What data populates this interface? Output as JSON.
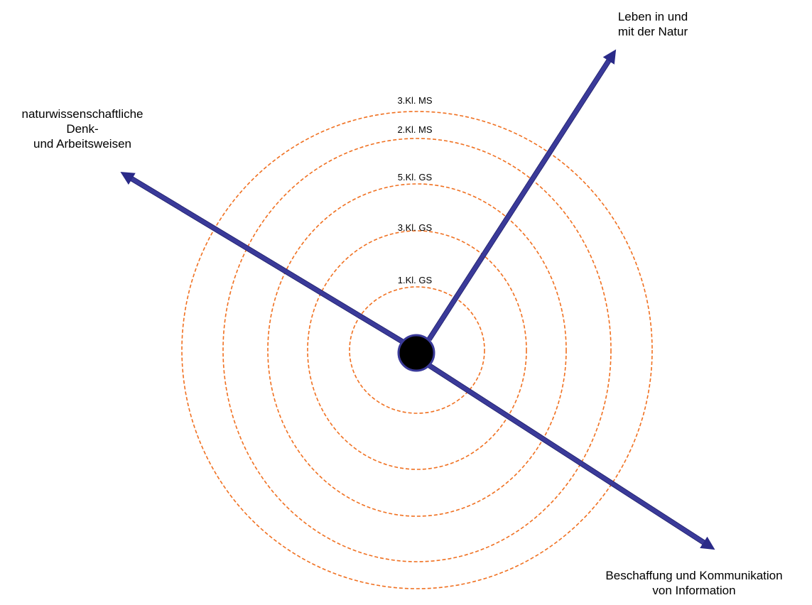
{
  "axes": {
    "nature": {
      "line1": "Leben in und",
      "line2": "mit der Natur"
    },
    "science": {
      "line1": "naturwissenschaftliche",
      "line2": "Denk-",
      "line3": "und Arbeitsweisen"
    },
    "info": {
      "line1": "Beschaffung und Kommunikation",
      "line2": "von Information"
    }
  },
  "rings": {
    "r1": "1.Kl. GS",
    "r2": "3.Kl. GS",
    "r3": "5.Kl. GS",
    "r4": "2.Kl. MS",
    "r5": "3.Kl. MS"
  },
  "colors": {
    "ring": "#f07020",
    "axis": "#3a3a99",
    "center": "#000000"
  }
}
